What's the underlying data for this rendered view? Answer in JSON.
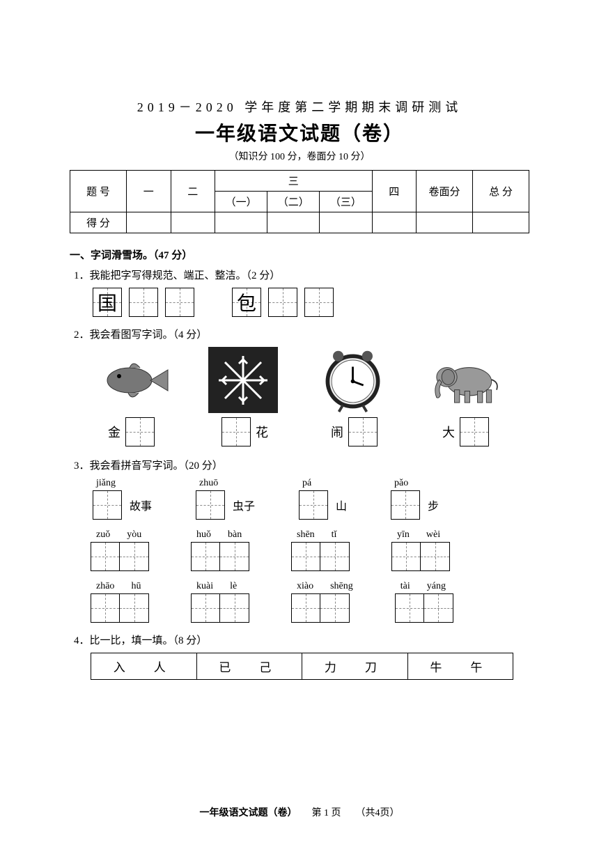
{
  "header": {
    "subtitle": "2019－2020 学年度第二学期期末调研测试",
    "title": "一年级语文试题（卷）",
    "scoring": "（知识分 100 分，卷面分 10 分）"
  },
  "score_table": {
    "row_label_1": "题 号",
    "row_label_2": "得 分",
    "cols": {
      "c1": "一",
      "c2": "二",
      "c3": "三",
      "c3a": "（一）",
      "c3b": "（二）",
      "c3c": "（三）",
      "c4": "四",
      "c5": "卷面分",
      "c6": "总 分"
    }
  },
  "sections": {
    "s1": {
      "title": "一、字词滑雪场。（47 分）",
      "q1": {
        "text": "1．我能把字写得规范、端正、整洁。（2 分）",
        "chars": [
          "国",
          "包"
        ]
      },
      "q2": {
        "text": "2．我会看图写字词。（4 分）",
        "labels": {
          "a_pre": "金",
          "b_post": "花",
          "c_pre": "闹",
          "d_pre": "大"
        }
      },
      "q3": {
        "text": "3．我会看拼音写字词。（20 分）",
        "row1": [
          {
            "pinyin": [
              "jiǎng"
            ],
            "boxes": 1,
            "after": "故事"
          },
          {
            "pinyin": [
              "zhuō"
            ],
            "boxes": 1,
            "after": "虫子"
          },
          {
            "pinyin": [
              "pá"
            ],
            "boxes": 1,
            "after": "山"
          },
          {
            "pinyin": [
              "pǎo"
            ],
            "boxes": 1,
            "after": "步"
          }
        ],
        "row2": [
          {
            "pinyin": [
              "zuǒ",
              "yòu"
            ],
            "boxes": 2,
            "after": ""
          },
          {
            "pinyin": [
              "huǒ",
              "bàn"
            ],
            "boxes": 2,
            "after": ""
          },
          {
            "pinyin": [
              "shēn",
              "tǐ"
            ],
            "boxes": 2,
            "after": ""
          },
          {
            "pinyin": [
              "yīn",
              "wèi"
            ],
            "boxes": 2,
            "after": ""
          }
        ],
        "row3": [
          {
            "pinyin": [
              "zhāo",
              "hū"
            ],
            "boxes": 2,
            "after": ""
          },
          {
            "pinyin": [
              "kuài",
              "lè"
            ],
            "boxes": 2,
            "after": ""
          },
          {
            "pinyin": [
              "xiào",
              "shēng"
            ],
            "boxes": 2,
            "after": ""
          },
          {
            "pinyin": [
              "tài",
              "yáng"
            ],
            "boxes": 2,
            "after": ""
          }
        ]
      },
      "q4": {
        "text": "4．比一比，填一填。（8 分）",
        "cells": [
          "入　人",
          "已　己",
          "力　刀",
          "牛　午"
        ]
      }
    }
  },
  "footer": {
    "left": "一年级语文试题（卷）",
    "mid": "第 1 页",
    "right": "（共4页）"
  },
  "colors": {
    "text": "#000000",
    "bg": "#ffffff",
    "grid_dash": "#888888"
  }
}
